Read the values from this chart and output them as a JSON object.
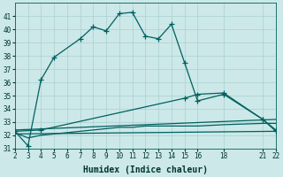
{
  "xlabel": "Humidex (Indice chaleur)",
  "bg_color": "#cce8e8",
  "grid_color": "#aad0d0",
  "line_color": "#006060",
  "xticks": [
    2,
    3,
    4,
    5,
    6,
    7,
    8,
    9,
    10,
    11,
    12,
    13,
    14,
    15,
    16,
    18,
    21,
    22
  ],
  "ylim_min": 31,
  "ylim_max": 42,
  "yticks": [
    31,
    32,
    33,
    34,
    35,
    36,
    37,
    38,
    39,
    40,
    41
  ],
  "series1_x": [
    2,
    3,
    4,
    5,
    7,
    8,
    9,
    10,
    11,
    12,
    13,
    14,
    15,
    16,
    18,
    21,
    22
  ],
  "series1_y": [
    32.3,
    31.2,
    36.2,
    37.9,
    39.3,
    40.2,
    39.9,
    41.2,
    41.3,
    39.5,
    39.3,
    40.4,
    37.5,
    34.6,
    35.1,
    33.2,
    32.4
  ],
  "series2_x": [
    2,
    4,
    15,
    16,
    18,
    21,
    22
  ],
  "series2_y": [
    32.3,
    32.4,
    34.8,
    35.1,
    35.2,
    33.2,
    32.3
  ],
  "series3_x": [
    2,
    22
  ],
  "series3_y": [
    32.4,
    33.2
  ],
  "series4_x": [
    2,
    3,
    4,
    5,
    6,
    7,
    8,
    9,
    10,
    11,
    12,
    13,
    14,
    15,
    16,
    18,
    21,
    22
  ],
  "series4_y": [
    32.2,
    31.8,
    32.0,
    32.1,
    32.2,
    32.3,
    32.4,
    32.5,
    32.6,
    32.6,
    32.7,
    32.7,
    32.7,
    32.7,
    32.7,
    32.8,
    32.9,
    32.9
  ],
  "series5_x": [
    2,
    22
  ],
  "series5_y": [
    32.1,
    32.3
  ]
}
